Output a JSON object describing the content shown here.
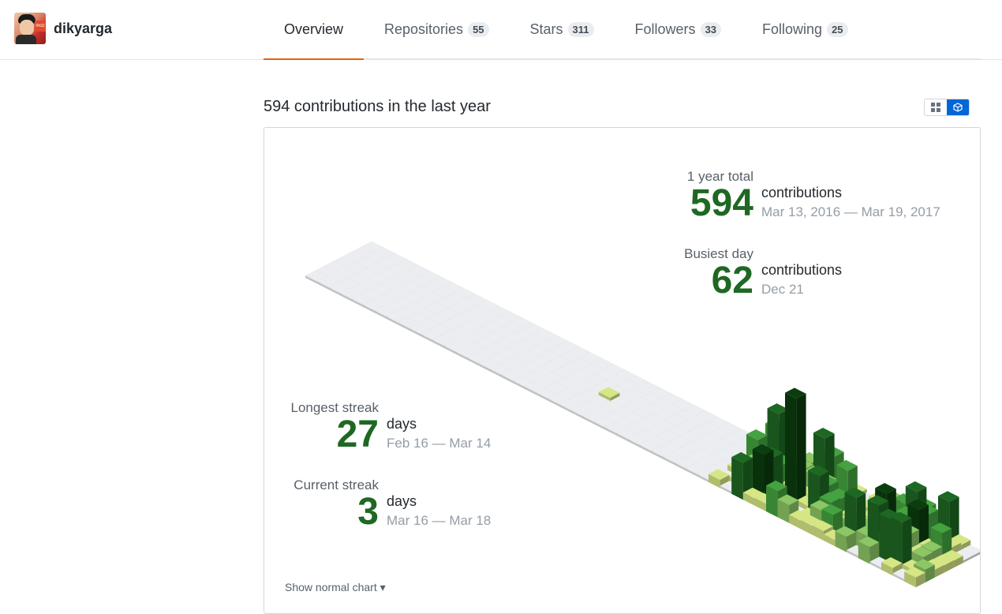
{
  "user": {
    "name": "dikyarga",
    "avatar_label": "moz"
  },
  "tabs": [
    {
      "label": "Overview",
      "count": null,
      "active": true
    },
    {
      "label": "Repositories",
      "count": "55"
    },
    {
      "label": "Stars",
      "count": "311"
    },
    {
      "label": "Followers",
      "count": "33"
    },
    {
      "label": "Following",
      "count": "25"
    }
  ],
  "contrib": {
    "heading": "594 contributions in the last year"
  },
  "stats": {
    "total": {
      "label": "1 year total",
      "value": "594",
      "unit": "contributions",
      "range": "Mar 13, 2016 — Mar 19, 2017"
    },
    "busiest": {
      "label": "Busiest day",
      "value": "62",
      "unit": "contributions",
      "range": "Dec 21"
    },
    "longest": {
      "label": "Longest streak",
      "value": "27",
      "unit": "days",
      "range": "Feb 16 — Mar 14"
    },
    "current": {
      "label": "Current streak",
      "value": "3",
      "unit": "days",
      "range": "Mar 16 — Mar 18"
    }
  },
  "show_normal": "Show normal chart ▾",
  "colors": {
    "empty": "#ebedf0",
    "l1": "#d6e685",
    "l2": "#8cc665",
    "l3": "#44a340",
    "l4": "#1e6823",
    "l5": "#0b3d0f",
    "accent": "#e36209",
    "number": "#1e6823"
  },
  "chart_data": {
    "type": "isometric-contribution-calendar",
    "weeks": 53,
    "days_per_week": 7,
    "total": 594,
    "max_day": 62,
    "active_period_note": "Contributions concentrated in the final ~18 weeks; one early isolated day"
  }
}
